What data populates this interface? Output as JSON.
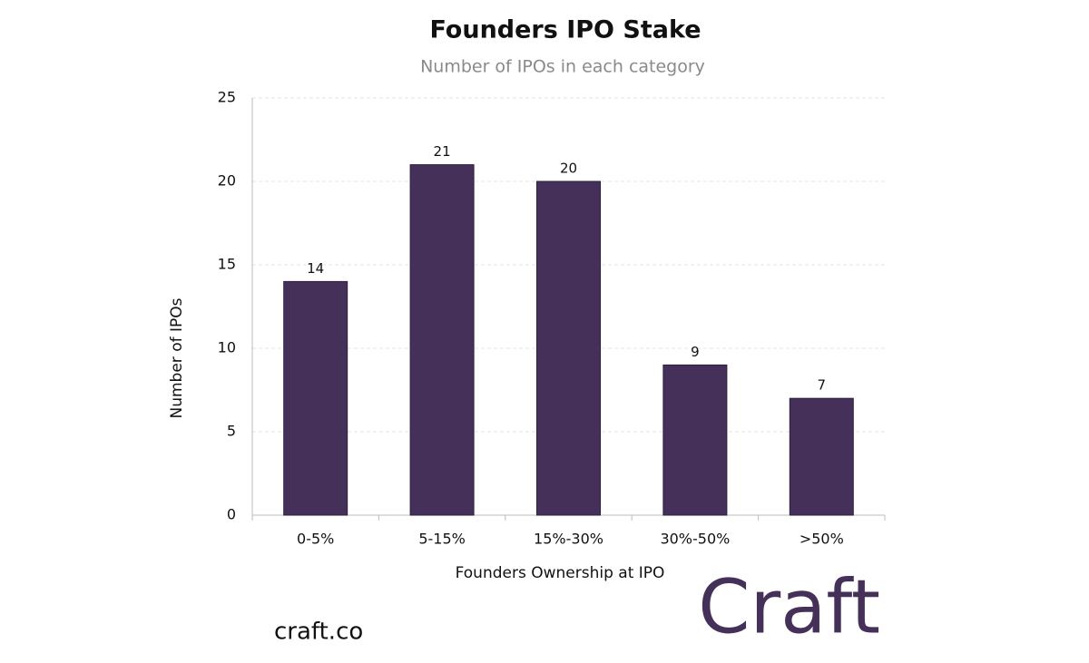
{
  "chart_data": {
    "type": "bar",
    "title": "Founders IPO Stake",
    "subtitle": "Number of IPOs in each category",
    "x_label": "Founders Ownership at IPO",
    "y_label": "Number of IPOs",
    "categories": [
      "0-5%",
      "5-15%",
      "15%-30%",
      "30%-50%",
      ">50%"
    ],
    "values": [
      14,
      21,
      20,
      9,
      7
    ],
    "color": "#45305a",
    "ylim": [
      0,
      25
    ],
    "yticks": [
      0,
      5,
      10,
      15,
      20,
      25
    ],
    "grid": true
  },
  "footer": {
    "url": "craft.co",
    "logo": "Craft"
  }
}
